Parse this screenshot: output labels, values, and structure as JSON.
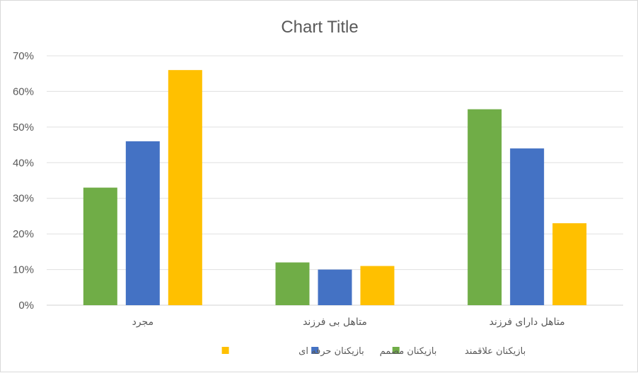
{
  "chart_data": {
    "type": "bar",
    "title": "Chart Title",
    "categories": [
      "مجرد",
      "متاهل بی فرزند",
      "متاهل دارای فرزند"
    ],
    "series": [
      {
        "name": "بازیکنان علاقمند",
        "color": "#70ad47",
        "values": [
          33,
          12,
          55
        ]
      },
      {
        "name": "بازیکنان مصمم",
        "color": "#4472c4",
        "values": [
          46,
          10,
          44
        ]
      },
      {
        "name": "بازیکنان حرفه ای",
        "color": "#ffc000",
        "values": [
          66,
          11,
          23
        ]
      }
    ],
    "y_ticks": [
      "0%",
      "10%",
      "20%",
      "30%",
      "40%",
      "50%",
      "60%",
      "70%"
    ],
    "ylim": [
      0,
      70
    ],
    "grid": true,
    "legend_position": "bottom"
  }
}
